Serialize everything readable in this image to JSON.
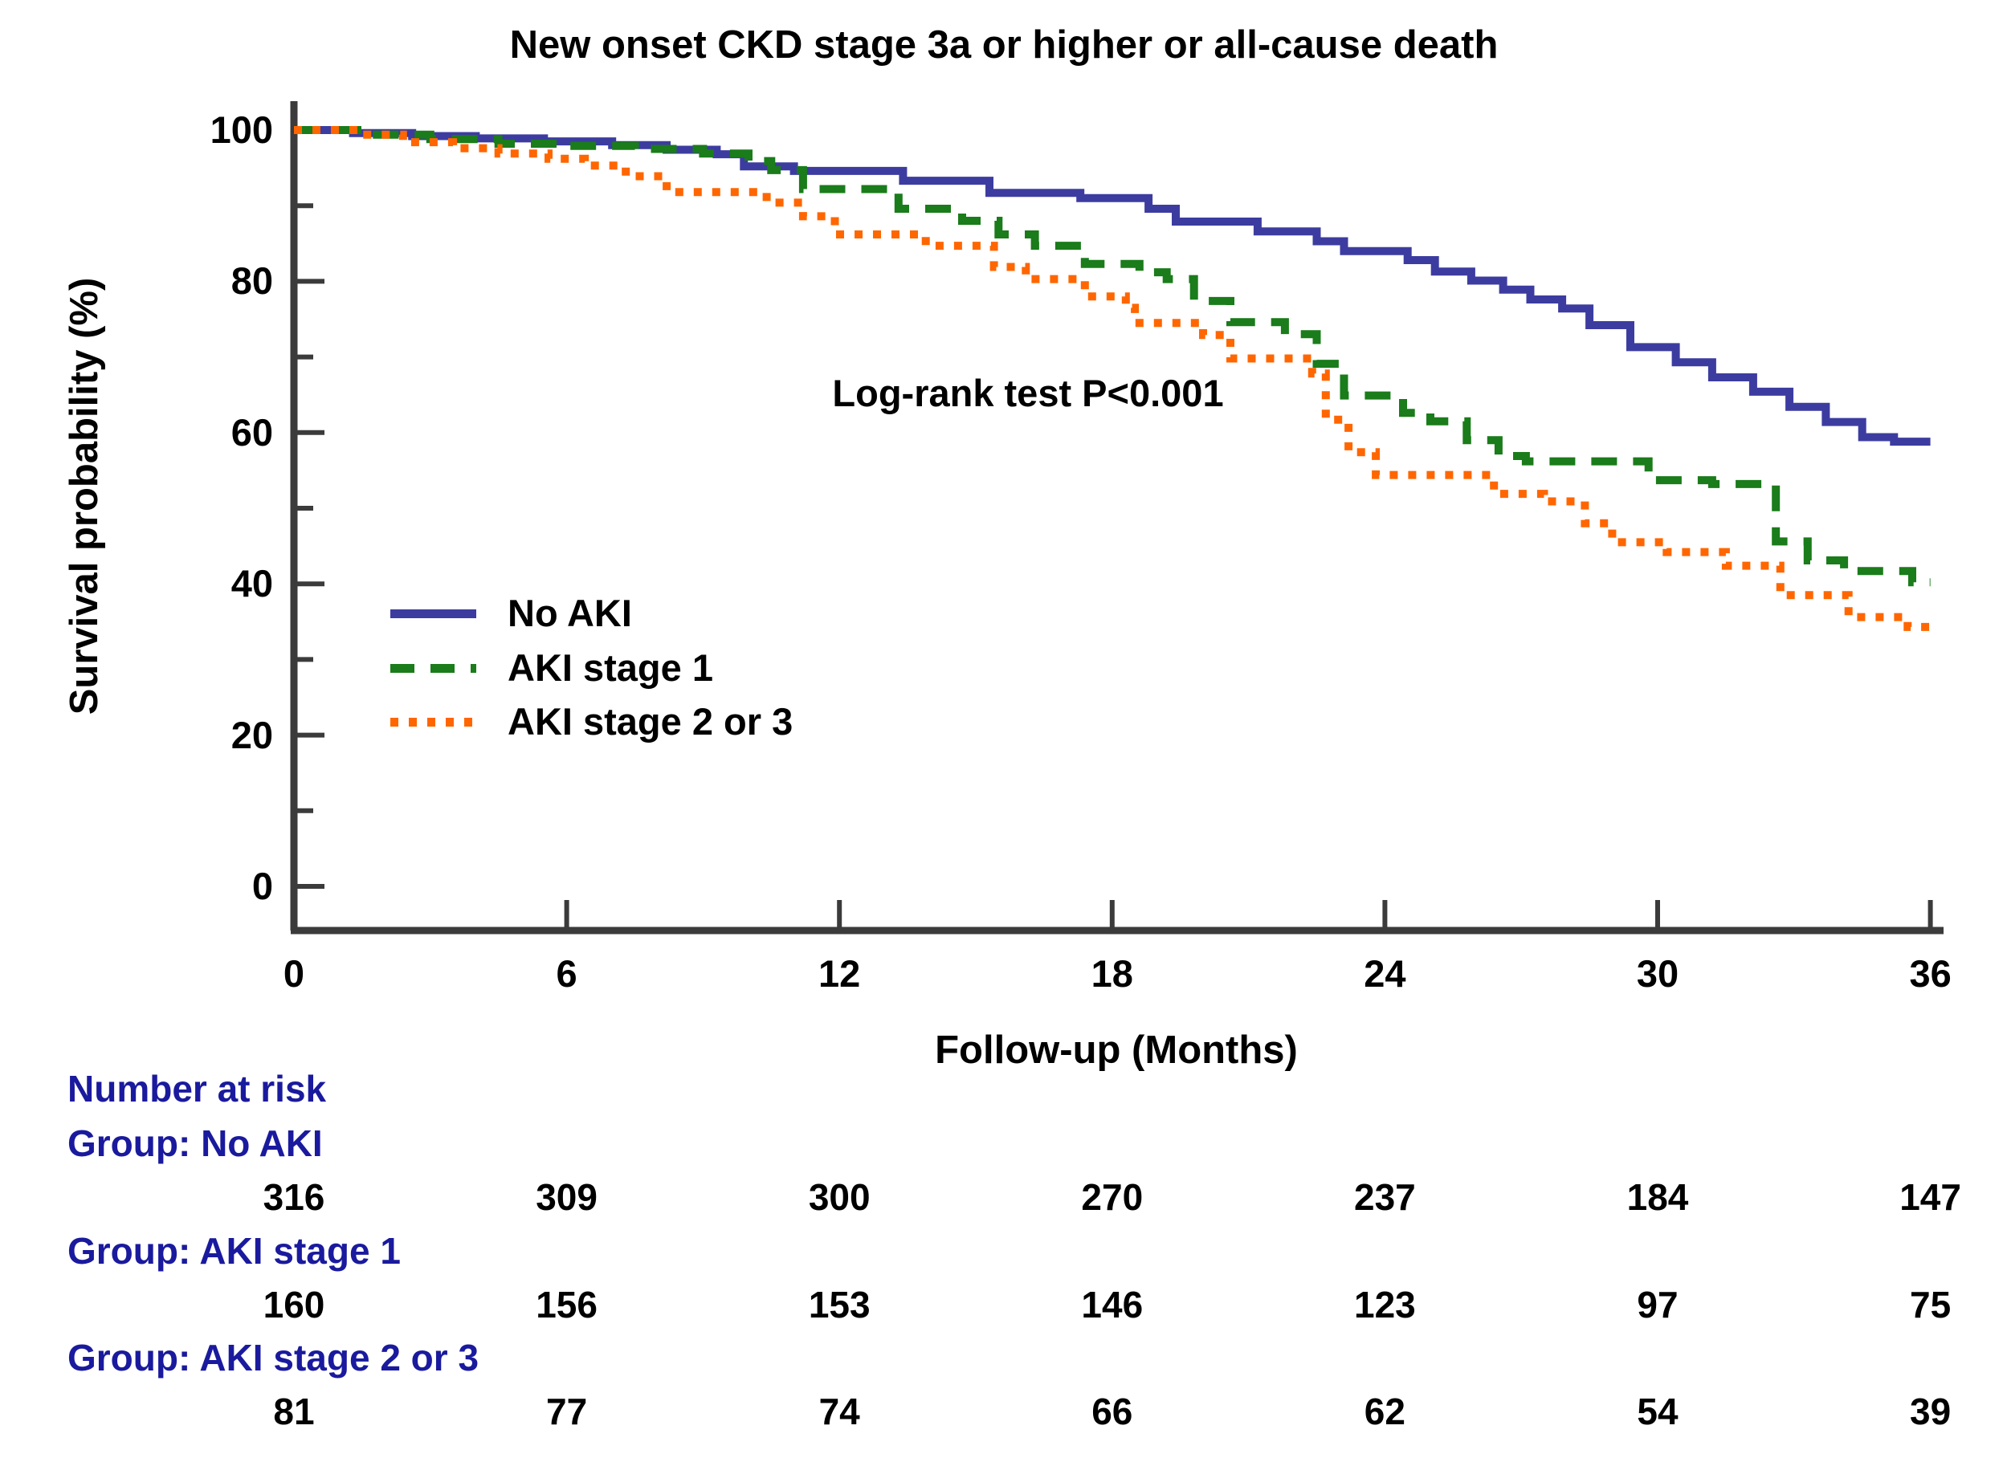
{
  "title": "New onset CKD stage 3a or higher or all-cause death",
  "annotation": "Log-rank test P<0.001",
  "x_axis": {
    "label": "Follow-up (Months)",
    "min": 0,
    "max": 36,
    "ticks": [
      0,
      6,
      12,
      18,
      24,
      30,
      36
    ]
  },
  "y_axis": {
    "label": "Survival probability (%)",
    "min": 0,
    "max": 100,
    "ticks": [
      0,
      20,
      40,
      60,
      80,
      100
    ],
    "minor_ticks": [
      10,
      30,
      50,
      70,
      90
    ]
  },
  "colors": {
    "no_aki": "#3c3ca0",
    "aki_stage_1": "#1a7c1a",
    "aki_stage_2_3": "#ff6600",
    "axis": "#3b3b3b",
    "risk_header_text": "#1a1a9e"
  },
  "legend": [
    {
      "label": "No AKI",
      "style": "solid",
      "color": "#3c3ca0"
    },
    {
      "label": "AKI stage 1",
      "style": "dashed",
      "color": "#1a7c1a"
    },
    {
      "label": "AKI stage 2 or 3",
      "style": "dotted",
      "color": "#ff6600"
    }
  ],
  "chart_data": {
    "type": "line",
    "subtype": "kaplan-meier-step",
    "title": "New onset CKD stage 3a or higher or all-cause death",
    "xlabel": "Follow-up (Months)",
    "ylabel": "Survival probability (%)",
    "xlim": [
      0,
      36
    ],
    "ylim": [
      0,
      100
    ],
    "grid": false,
    "legend_position": "inside-left-middle",
    "annotation": "Log-rank test P<0.001",
    "series": [
      {
        "name": "No AKI",
        "color": "#3c3ca0",
        "dash": "solid",
        "points": [
          [
            0,
            100
          ],
          [
            1.3,
            99.6
          ],
          [
            2.6,
            99.2
          ],
          [
            4,
            98.9
          ],
          [
            5.5,
            98.5
          ],
          [
            7,
            98
          ],
          [
            8.2,
            97.4
          ],
          [
            9.3,
            96.8
          ],
          [
            9.9,
            95.2
          ],
          [
            11,
            94.6
          ],
          [
            13.4,
            93.3
          ],
          [
            15.3,
            91.7
          ],
          [
            17.3,
            91
          ],
          [
            18.8,
            89.6
          ],
          [
            19.4,
            87.9
          ],
          [
            21.2,
            86.6
          ],
          [
            22.5,
            85.3
          ],
          [
            23.1,
            84
          ],
          [
            24.5,
            82.8
          ],
          [
            25.1,
            81.3
          ],
          [
            25.9,
            80.1
          ],
          [
            26.6,
            78.9
          ],
          [
            27.2,
            77.6
          ],
          [
            27.9,
            76.4
          ],
          [
            28.5,
            74.2
          ],
          [
            29.4,
            71.3
          ],
          [
            30.4,
            69.3
          ],
          [
            31.2,
            67.3
          ],
          [
            32.1,
            65.4
          ],
          [
            32.9,
            63.4
          ],
          [
            33.7,
            61.4
          ],
          [
            34.5,
            59.4
          ],
          [
            35.2,
            58.8
          ],
          [
            36,
            58.8
          ]
        ]
      },
      {
        "name": "AKI stage 1",
        "color": "#1a7c1a",
        "dash": "dashed",
        "points": [
          [
            0,
            100
          ],
          [
            1.5,
            99.4
          ],
          [
            3,
            98.8
          ],
          [
            4.5,
            98.2
          ],
          [
            6,
            97.9
          ],
          [
            7.5,
            97.5
          ],
          [
            9,
            96.9
          ],
          [
            10,
            95.9
          ],
          [
            10.5,
            94.7
          ],
          [
            11.2,
            92.2
          ],
          [
            13.3,
            89.6
          ],
          [
            14.7,
            88
          ],
          [
            15.5,
            86.2
          ],
          [
            16.3,
            84.7
          ],
          [
            17.4,
            82.3
          ],
          [
            18.6,
            81.2
          ],
          [
            19.2,
            80.3
          ],
          [
            19.8,
            77.4
          ],
          [
            20.6,
            74.6
          ],
          [
            21.8,
            73
          ],
          [
            22.5,
            69.1
          ],
          [
            23.1,
            64.9
          ],
          [
            24.4,
            62.6
          ],
          [
            25,
            61.5
          ],
          [
            25.8,
            59
          ],
          [
            26.5,
            56.9
          ],
          [
            27.1,
            56.2
          ],
          [
            29.8,
            53.7
          ],
          [
            31.2,
            53.2
          ],
          [
            32.6,
            45.6
          ],
          [
            33.3,
            43.1
          ],
          [
            34.1,
            41.7
          ],
          [
            35.6,
            40.2
          ],
          [
            36,
            40.2
          ]
        ]
      },
      {
        "name": "AKI stage 2 or 3",
        "color": "#ff6600",
        "dash": "dotted",
        "points": [
          [
            0,
            100
          ],
          [
            1.4,
            99.4
          ],
          [
            2.4,
            98.4
          ],
          [
            3.5,
            97.6
          ],
          [
            4.5,
            96.9
          ],
          [
            5.6,
            96.2
          ],
          [
            6.4,
            95.3
          ],
          [
            7.3,
            93.9
          ],
          [
            8.2,
            91.8
          ],
          [
            10.4,
            90.4
          ],
          [
            11.2,
            88.6
          ],
          [
            11.9,
            86.2
          ],
          [
            13.9,
            84.7
          ],
          [
            15.4,
            81.9
          ],
          [
            16.1,
            80.3
          ],
          [
            17.4,
            78
          ],
          [
            18.3,
            76.5
          ],
          [
            18.5,
            74.5
          ],
          [
            20,
            72.9
          ],
          [
            20.6,
            69.8
          ],
          [
            22.4,
            67.8
          ],
          [
            22.7,
            61.7
          ],
          [
            23.2,
            57.4
          ],
          [
            23.8,
            54.4
          ],
          [
            26.4,
            51.9
          ],
          [
            27.5,
            50.9
          ],
          [
            28.4,
            48
          ],
          [
            29,
            45.5
          ],
          [
            30.2,
            44.2
          ],
          [
            31.5,
            42.4
          ],
          [
            32.7,
            38.5
          ],
          [
            34.2,
            35.6
          ],
          [
            35.5,
            34.3
          ],
          [
            36,
            33.8
          ]
        ]
      }
    ]
  },
  "risk_table": {
    "title": "Number at risk",
    "times": [
      0,
      6,
      12,
      18,
      24,
      30,
      36
    ],
    "groups": [
      {
        "label": "Group: No AKI",
        "values": [
          316,
          309,
          300,
          270,
          237,
          184,
          147
        ]
      },
      {
        "label": "Group: AKI stage 1",
        "values": [
          160,
          156,
          153,
          146,
          123,
          97,
          75
        ]
      },
      {
        "label": "Group: AKI stage 2 or 3",
        "values": [
          81,
          77,
          74,
          66,
          62,
          54,
          39
        ]
      }
    ]
  }
}
